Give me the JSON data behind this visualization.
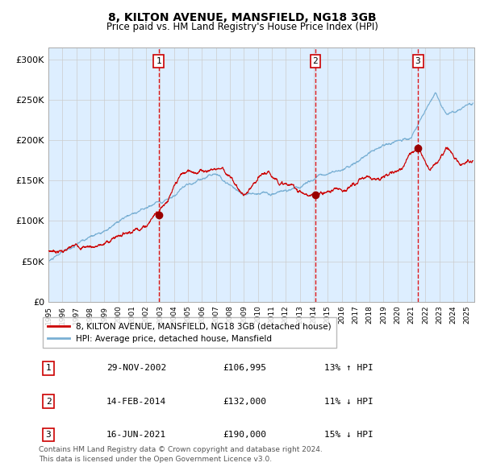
{
  "title": "8, KILTON AVENUE, MANSFIELD, NG18 3GB",
  "subtitle": "Price paid vs. HM Land Registry's House Price Index (HPI)",
  "background_color": "#ffffff",
  "chart_bg_color": "#ddeeff",
  "ylabel_ticks": [
    "£0",
    "£50K",
    "£100K",
    "£150K",
    "£200K",
    "£250K",
    "£300K"
  ],
  "ytick_values": [
    0,
    50000,
    100000,
    150000,
    200000,
    250000,
    300000
  ],
  "ylim": [
    0,
    315000
  ],
  "xlim_start": 1995.0,
  "xlim_end": 2025.5,
  "sale_dates": [
    2002.91,
    2014.12,
    2021.46
  ],
  "sale_prices": [
    106995,
    132000,
    190000
  ],
  "sale_labels": [
    "1",
    "2",
    "3"
  ],
  "sale_label_dates": [
    "29-NOV-2002",
    "14-FEB-2014",
    "16-JUN-2021"
  ],
  "sale_price_labels": [
    "£106,995",
    "£132,000",
    "£190,000"
  ],
  "sale_hpi_labels": [
    "13% ↑ HPI",
    "11% ↓ HPI",
    "15% ↓ HPI"
  ],
  "red_line_color": "#cc0000",
  "blue_line_color": "#7ab0d4",
  "sale_dot_color": "#990000",
  "vline_color": "#dd0000",
  "box_edge_color": "#cc0000",
  "grid_color": "#cccccc",
  "legend_label_red": "8, KILTON AVENUE, MANSFIELD, NG18 3GB (detached house)",
  "legend_label_blue": "HPI: Average price, detached house, Mansfield",
  "footer": "Contains HM Land Registry data © Crown copyright and database right 2024.\nThis data is licensed under the Open Government Licence v3.0."
}
